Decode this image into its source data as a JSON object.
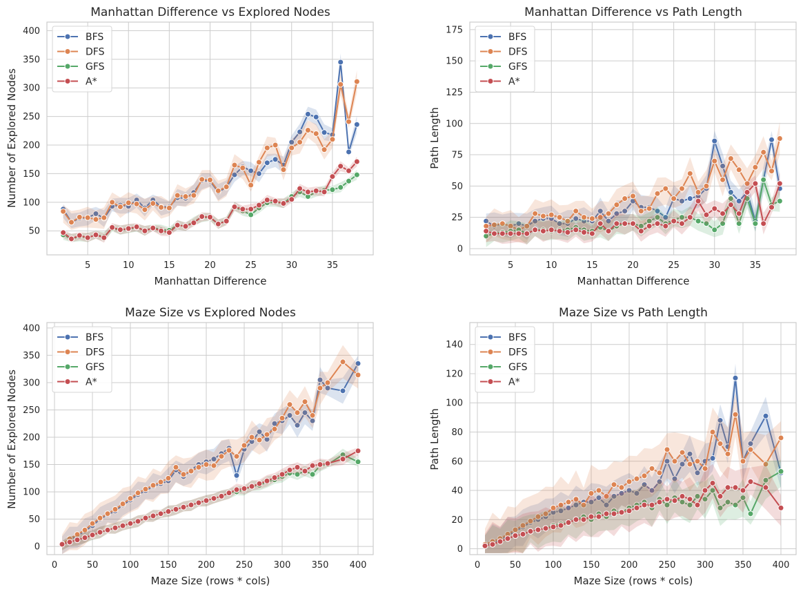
{
  "series_styles": [
    {
      "name": "BFS",
      "color": "#4c72b0"
    },
    {
      "name": "DFS",
      "color": "#dd8452"
    },
    {
      "name": "GFS",
      "color": "#55a868"
    },
    {
      "name": "A*",
      "color": "#c44e52"
    }
  ],
  "chart_data": [
    {
      "type": "line",
      "title": "Manhattan Difference vs Explored Nodes",
      "xlabel": "Manhattan Difference",
      "ylabel": "Number of Explored Nodes",
      "xlim": [
        0,
        40
      ],
      "ylim": [
        8,
        415
      ],
      "xticks": [
        5,
        10,
        15,
        20,
        25,
        30,
        35
      ],
      "yticks": [
        50,
        100,
        150,
        200,
        250,
        300,
        350,
        400
      ],
      "grid": true,
      "legend": "top-left",
      "x": [
        2,
        3,
        4,
        5,
        6,
        7,
        8,
        9,
        10,
        11,
        12,
        13,
        14,
        15,
        16,
        17,
        18,
        19,
        20,
        21,
        22,
        23,
        24,
        25,
        26,
        27,
        28,
        29,
        30,
        31,
        32,
        33,
        34,
        35,
        36,
        37,
        38
      ],
      "series": [
        {
          "name": "BFS",
          "values": [
            88,
            65,
            72,
            73,
            80,
            72,
            93,
            95,
            93,
            104,
            90,
            104,
            92,
            92,
            108,
            107,
            117,
            138,
            137,
            118,
            126,
            148,
            162,
            155,
            150,
            169,
            175,
            165,
            205,
            223,
            254,
            249,
            222,
            218,
            345,
            188,
            236
          ],
          "band": 14
        },
        {
          "name": "DFS",
          "values": [
            84,
            65,
            74,
            73,
            70,
            73,
            100,
            92,
            99,
            97,
            87,
            98,
            91,
            90,
            112,
            110,
            112,
            140,
            139,
            120,
            127,
            165,
            160,
            130,
            170,
            195,
            200,
            157,
            195,
            205,
            226,
            220,
            192,
            210,
            306,
            241,
            311
          ],
          "band": 18
        },
        {
          "name": "GFS",
          "values": [
            43,
            36,
            40,
            38,
            43,
            40,
            54,
            52,
            53,
            56,
            50,
            56,
            52,
            51,
            60,
            58,
            66,
            74,
            73,
            62,
            68,
            92,
            85,
            78,
            90,
            99,
            100,
            98,
            110,
            118,
            110,
            118,
            121,
            122,
            126,
            137,
            148
          ],
          "band": 8
        },
        {
          "name": "A*",
          "values": [
            47,
            36,
            42,
            38,
            43,
            38,
            56,
            52,
            54,
            57,
            50,
            55,
            50,
            47,
            60,
            58,
            64,
            75,
            74,
            62,
            67,
            92,
            88,
            88,
            95,
            104,
            102,
            98,
            105,
            124,
            118,
            120,
            118,
            145,
            163,
            155,
            171
          ],
          "band": 8
        }
      ]
    },
    {
      "type": "line",
      "title": "Manhattan Difference vs Path Length",
      "xlabel": "Manhattan Difference",
      "ylabel": "Path Length",
      "xlim": [
        0,
        40
      ],
      "ylim": [
        -5,
        181
      ],
      "xticks": [
        5,
        10,
        15,
        20,
        25,
        30,
        35
      ],
      "yticks": [
        0,
        25,
        50,
        75,
        100,
        125,
        150,
        175
      ],
      "grid": true,
      "legend": "top-left",
      "x": [
        2,
        3,
        4,
        5,
        6,
        7,
        8,
        9,
        10,
        11,
        12,
        13,
        14,
        15,
        16,
        17,
        18,
        19,
        20,
        21,
        22,
        23,
        24,
        25,
        26,
        27,
        28,
        29,
        30,
        31,
        32,
        33,
        34,
        35,
        36,
        37,
        38
      ],
      "series": [
        {
          "name": "BFS",
          "values": [
            22,
            18,
            20,
            18,
            20,
            18,
            22,
            24,
            24,
            20,
            20,
            24,
            22,
            22,
            30,
            22,
            28,
            30,
            38,
            33,
            33,
            30,
            25,
            40,
            38,
            40,
            42,
            48,
            86,
            66,
            45,
            38,
            45,
            22,
            55,
            87,
            48
          ],
          "band": 10
        },
        {
          "name": "DFS",
          "values": [
            18,
            19,
            20,
            18,
            15,
            18,
            28,
            26,
            27,
            25,
            22,
            30,
            25,
            24,
            25,
            28,
            35,
            40,
            42,
            30,
            32,
            44,
            48,
            40,
            48,
            60,
            45,
            50,
            70,
            55,
            72,
            63,
            52,
            65,
            77,
            62,
            88
          ],
          "band": 12
        },
        {
          "name": "GFS",
          "values": [
            10,
            12,
            13,
            14,
            15,
            12,
            15,
            15,
            14,
            15,
            15,
            17,
            15,
            14,
            17,
            14,
            18,
            20,
            20,
            18,
            22,
            25,
            20,
            23,
            25,
            25,
            22,
            20,
            15,
            20,
            40,
            20,
            40,
            20,
            55,
            35,
            38
          ],
          "band": 8
        },
        {
          "name": "A*",
          "values": [
            14,
            12,
            12,
            12,
            12,
            12,
            15,
            14,
            15,
            14,
            13,
            15,
            13,
            12,
            20,
            14,
            20,
            20,
            20,
            14,
            18,
            20,
            18,
            22,
            20,
            25,
            38,
            27,
            32,
            28,
            35,
            28,
            45,
            52,
            20,
            33,
            52
          ],
          "band": 8
        }
      ]
    },
    {
      "type": "line",
      "title": "Maze Size vs Explored Nodes",
      "xlabel": "Maze Size (rows * cols)",
      "ylabel": "Number of Explored Nodes",
      "xlim": [
        -10,
        420
      ],
      "ylim": [
        -15,
        410
      ],
      "xticks": [
        0,
        50,
        100,
        150,
        200,
        250,
        300,
        350,
        400
      ],
      "yticks": [
        0,
        50,
        100,
        150,
        200,
        250,
        300,
        350,
        400
      ],
      "grid": true,
      "legend": "top-left",
      "x": [
        10,
        20,
        30,
        40,
        50,
        60,
        70,
        80,
        90,
        100,
        110,
        120,
        130,
        140,
        150,
        160,
        170,
        180,
        190,
        200,
        210,
        220,
        230,
        240,
        250,
        260,
        270,
        280,
        290,
        300,
        310,
        320,
        330,
        340,
        350,
        360,
        380,
        400
      ],
      "series": [
        {
          "name": "BFS",
          "values": [
            5,
            12,
            20,
            28,
            38,
            50,
            58,
            65,
            76,
            85,
            95,
            102,
            110,
            115,
            120,
            140,
            128,
            140,
            150,
            155,
            160,
            170,
            180,
            130,
            178,
            192,
            210,
            196,
            225,
            230,
            240,
            222,
            245,
            230,
            305,
            290,
            285,
            335
          ],
          "band": 22
        },
        {
          "name": "DFS",
          "values": [
            5,
            14,
            22,
            30,
            42,
            52,
            60,
            68,
            78,
            88,
            98,
            105,
            112,
            118,
            125,
            145,
            132,
            138,
            145,
            150,
            148,
            165,
            176,
            165,
            185,
            200,
            195,
            205,
            215,
            235,
            260,
            245,
            265,
            240,
            290,
            300,
            338,
            314
          ],
          "band": 28
        },
        {
          "name": "GFS",
          "values": [
            4,
            8,
            12,
            16,
            20,
            26,
            30,
            34,
            38,
            42,
            46,
            52,
            56,
            60,
            64,
            68,
            72,
            76,
            80,
            84,
            88,
            92,
            98,
            100,
            104,
            110,
            112,
            118,
            122,
            128,
            134,
            132,
            138,
            132,
            148,
            150,
            168,
            155
          ],
          "band": 10
        },
        {
          "name": "A*",
          "values": [
            4,
            8,
            12,
            16,
            21,
            26,
            30,
            34,
            38,
            42,
            46,
            52,
            56,
            60,
            64,
            68,
            72,
            76,
            80,
            84,
            88,
            92,
            98,
            104,
            106,
            110,
            115,
            120,
            126,
            132,
            140,
            145,
            138,
            148,
            150,
            152,
            160,
            175
          ],
          "band": 10
        }
      ]
    },
    {
      "type": "line",
      "title": "Maze Size vs Path Length",
      "xlabel": "Maze Size (rows * cols)",
      "ylabel": "Path Length",
      "xlim": [
        -10,
        420
      ],
      "ylim": [
        -4,
        155
      ],
      "xticks": [
        0,
        50,
        100,
        150,
        200,
        250,
        300,
        350,
        400
      ],
      "yticks": [
        0,
        20,
        40,
        60,
        80,
        100,
        120,
        140
      ],
      "grid": true,
      "legend": "top-left",
      "x": [
        10,
        20,
        30,
        40,
        50,
        60,
        70,
        80,
        90,
        100,
        110,
        120,
        130,
        140,
        150,
        160,
        170,
        180,
        190,
        200,
        210,
        220,
        230,
        240,
        250,
        260,
        270,
        280,
        290,
        300,
        310,
        320,
        330,
        340,
        350,
        360,
        380,
        400
      ],
      "series": [
        {
          "name": "BFS",
          "values": [
            2,
            4,
            6,
            9,
            12,
            15,
            18,
            20,
            22,
            25,
            26,
            28,
            30,
            32,
            32,
            35,
            30,
            36,
            38,
            40,
            38,
            44,
            40,
            46,
            60,
            48,
            58,
            65,
            52,
            60,
            62,
            88,
            70,
            117,
            60,
            72,
            91,
            52
          ],
          "band": 12
        },
        {
          "name": "DFS",
          "values": [
            3,
            5,
            7,
            10,
            13,
            16,
            19,
            22,
            24,
            28,
            30,
            32,
            34,
            30,
            38,
            40,
            36,
            44,
            42,
            46,
            48,
            50,
            55,
            52,
            68,
            60,
            66,
            58,
            60,
            55,
            80,
            72,
            65,
            92,
            60,
            68,
            58,
            76
          ],
          "band": 18
        },
        {
          "name": "GFS",
          "values": [
            2,
            3,
            5,
            7,
            9,
            10,
            12,
            13,
            14,
            16,
            17,
            18,
            20,
            22,
            20,
            24,
            22,
            26,
            25,
            28,
            30,
            32,
            28,
            34,
            30,
            35,
            32,
            30,
            36,
            34,
            40,
            28,
            32,
            30,
            35,
            24,
            47,
            53
          ],
          "band": 12
        },
        {
          "name": "A*",
          "values": [
            2,
            3,
            5,
            7,
            9,
            10,
            12,
            13,
            14,
            15,
            16,
            18,
            20,
            20,
            22,
            22,
            24,
            24,
            25,
            26,
            28,
            30,
            30,
            32,
            34,
            33,
            36,
            34,
            30,
            40,
            45,
            36,
            42,
            42,
            40,
            46,
            42,
            28
          ],
          "band": 14
        }
      ]
    }
  ]
}
